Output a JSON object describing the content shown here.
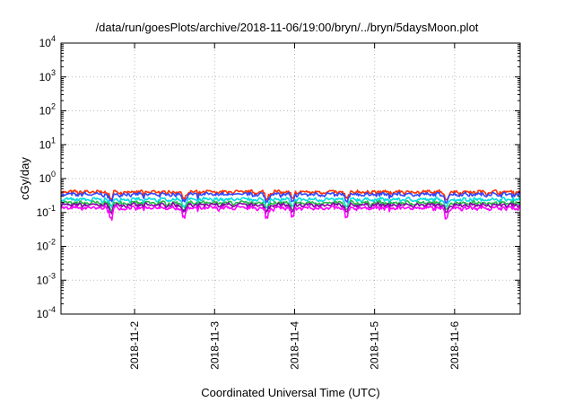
{
  "chart_data": {
    "type": "line",
    "title": "/data/run/goesPlots/archive/2018-11-06/19:00/bryn/../bryn/5daysMoon.plot",
    "xlabel": "Coordinated Universal Time (UTC)",
    "ylabel": "cGy/day",
    "yscale": "log",
    "ylim_exponents": [
      -4,
      4
    ],
    "y_ticks": [
      {
        "base": "10",
        "exp": "-4"
      },
      {
        "base": "10",
        "exp": "-3"
      },
      {
        "base": "10",
        "exp": "-2"
      },
      {
        "base": "10",
        "exp": "-1"
      },
      {
        "base": "10",
        "exp": "0"
      },
      {
        "base": "10",
        "exp": "1"
      },
      {
        "base": "10",
        "exp": "2"
      },
      {
        "base": "10",
        "exp": "3"
      },
      {
        "base": "10",
        "exp": "4"
      }
    ],
    "xlim": [
      1.08,
      6.82
    ],
    "x_ticks": [
      {
        "pos": 2,
        "label": "2018-11-2"
      },
      {
        "pos": 3,
        "label": "2018-11-3"
      },
      {
        "pos": 4,
        "label": "2018-11-4"
      },
      {
        "pos": 5,
        "label": "2018-11-5"
      },
      {
        "pos": 6,
        "label": "2018-11-6"
      }
    ],
    "grid": true,
    "x_unit": "day of November 2018",
    "series": [
      {
        "color": "#ff3300",
        "base": 0.4
      },
      {
        "color": "#3344ff",
        "base": 0.34
      },
      {
        "color": "#00dddd",
        "base": 0.24
      },
      {
        "color": "#22bb44",
        "base": 0.19
      },
      {
        "color": "#8800aa",
        "base": 0.165
      },
      {
        "color": "#ff00ff",
        "base": 0.135
      }
    ],
    "dips": [
      1.7,
      2.62,
      3.65,
      3.97,
      4.65,
      5.9
    ]
  }
}
